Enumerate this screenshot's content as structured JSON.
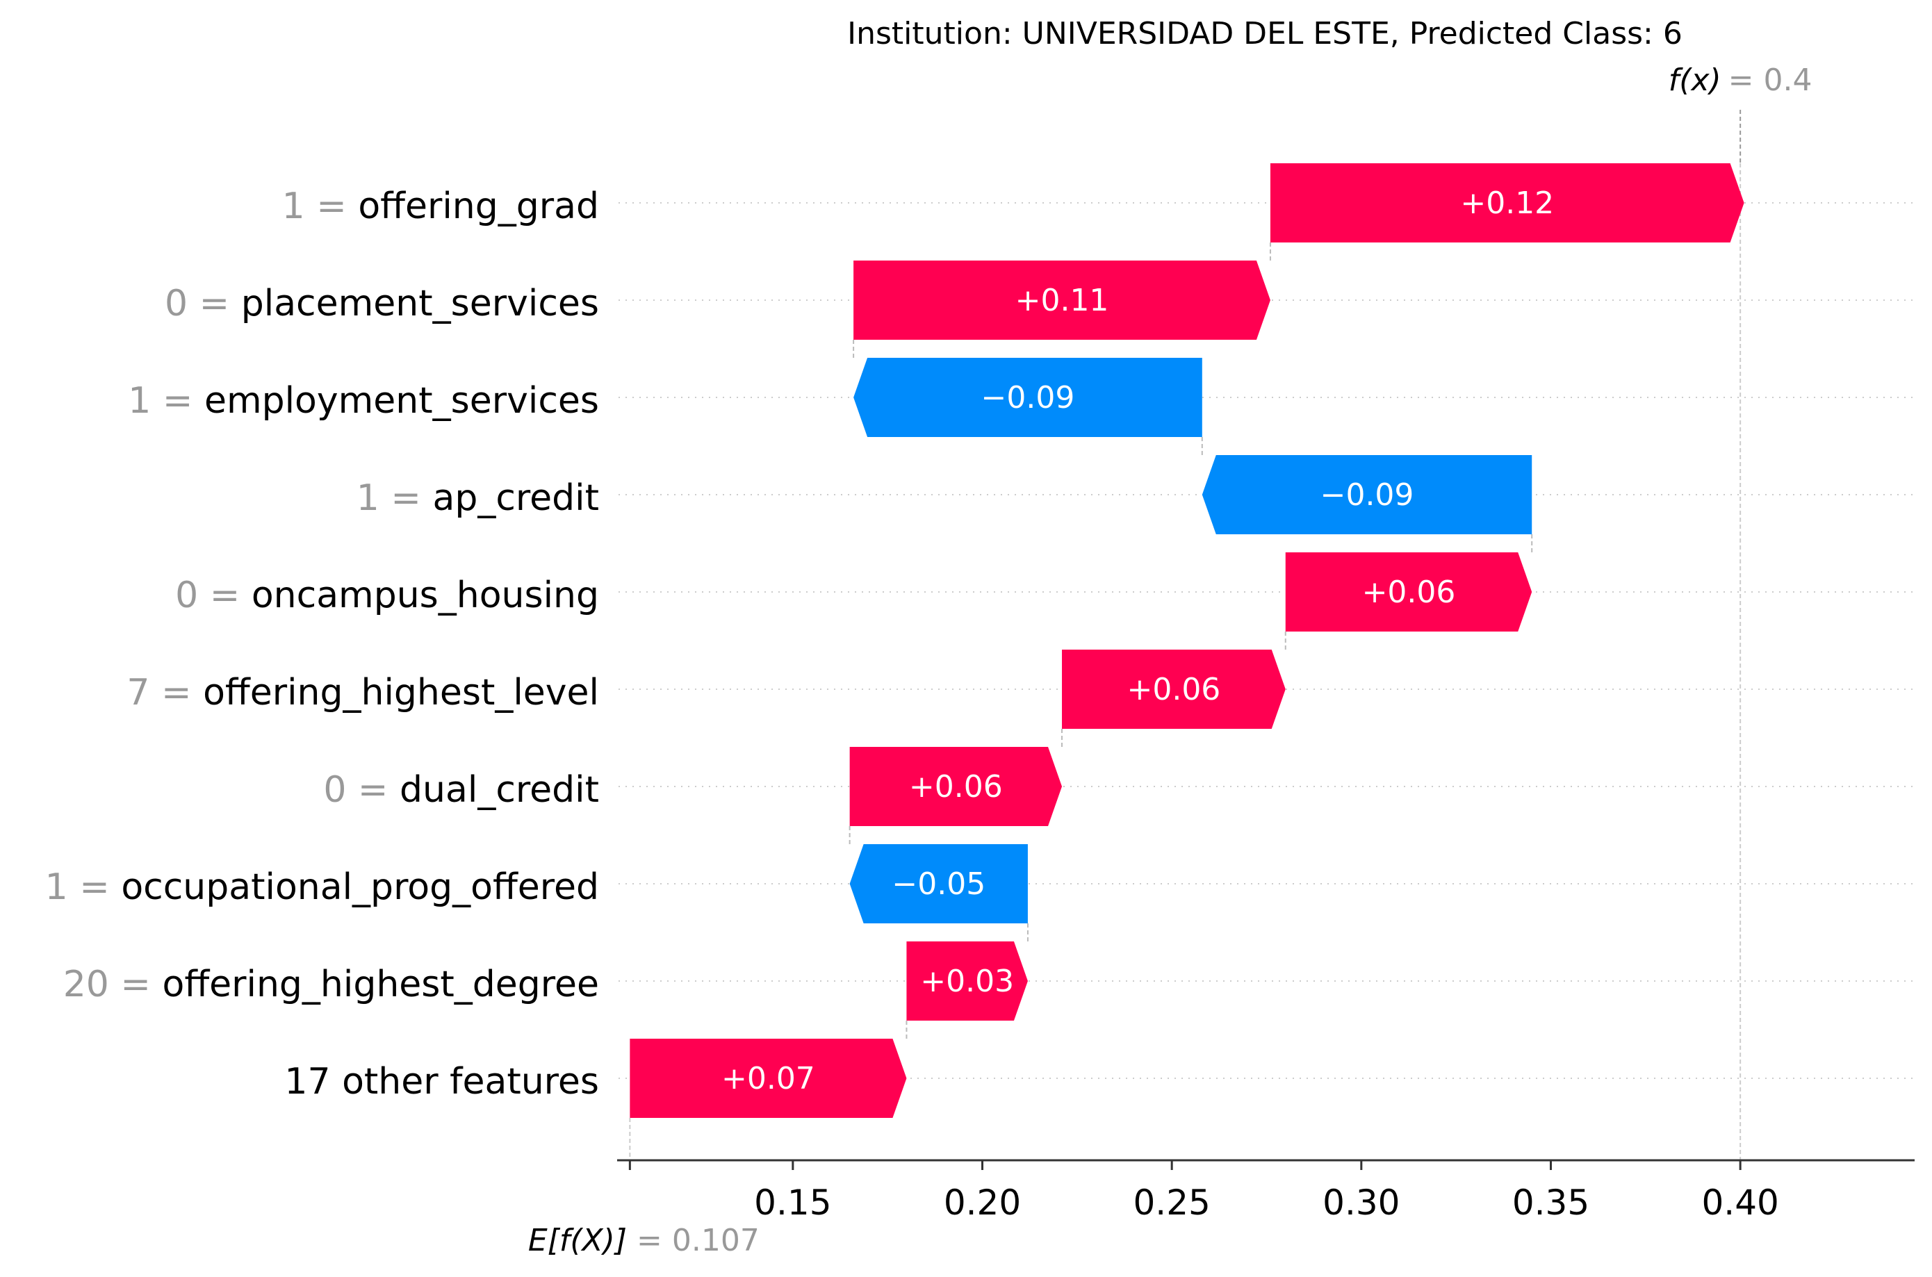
{
  "chart_data": {
    "type": "waterfall",
    "title": "Institution: UNIVERSIDAD DEL ESTE, Predicted Class: 6",
    "base_value": 0.107,
    "base_label": "E[f(X)]",
    "base_value_text": "= 0.107",
    "output_value": 0.4,
    "output_label": "f(x)",
    "output_value_text": "= 0.4",
    "features": [
      {
        "value": "1",
        "name": "offering_grad",
        "contribution": 0.125,
        "label": "+0.12"
      },
      {
        "value": "0",
        "name": "placement_services",
        "contribution": 0.11,
        "label": "+0.11"
      },
      {
        "value": "1",
        "name": "employment_services",
        "contribution": -0.092,
        "label": "−0.09"
      },
      {
        "value": "1",
        "name": "ap_credit",
        "contribution": -0.087,
        "label": "−0.09"
      },
      {
        "value": "0",
        "name": "oncampus_housing",
        "contribution": 0.065,
        "label": "+0.06"
      },
      {
        "value": "7",
        "name": "offering_highest_level",
        "contribution": 0.059,
        "label": "+0.06"
      },
      {
        "value": "0",
        "name": "dual_credit",
        "contribution": 0.056,
        "label": "+0.06"
      },
      {
        "value": "1",
        "name": "occupational_prog_offered",
        "contribution": -0.047,
        "label": "−0.05"
      },
      {
        "value": "20",
        "name": "offering_highest_degree",
        "contribution": 0.032,
        "label": "+0.03"
      },
      {
        "value": "",
        "name": "17 other features",
        "contribution": 0.073,
        "label": "+0.07"
      }
    ],
    "xlim": [
      0.104,
      0.446
    ],
    "xticks": [
      {
        "value": 0.15,
        "label": "0.15"
      },
      {
        "value": 0.2,
        "label": "0.20"
      },
      {
        "value": 0.25,
        "label": "0.25"
      },
      {
        "value": 0.3,
        "label": "0.30"
      },
      {
        "value": 0.35,
        "label": "0.35"
      },
      {
        "value": 0.4,
        "label": "0.40"
      }
    ],
    "colors": {
      "positive": "#ff0051",
      "negative": "#008bfb",
      "muted_text": "#999999"
    }
  }
}
